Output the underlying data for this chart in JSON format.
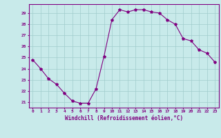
{
  "x": [
    0,
    1,
    2,
    3,
    4,
    5,
    6,
    7,
    8,
    9,
    10,
    11,
    12,
    13,
    14,
    15,
    16,
    17,
    18,
    19,
    20,
    21,
    22,
    23
  ],
  "y": [
    24.8,
    24.0,
    23.1,
    22.6,
    21.8,
    21.1,
    20.9,
    20.9,
    22.2,
    25.1,
    28.4,
    29.3,
    29.1,
    29.3,
    29.3,
    29.1,
    29.0,
    28.4,
    28.0,
    26.7,
    26.5,
    25.7,
    25.4,
    24.6
  ],
  "line_color": "#800080",
  "marker": "*",
  "marker_size": 3,
  "bg_color": "#c8eaea",
  "grid_color": "#a0cccc",
  "xlabel": "Windchill (Refroidissement éolien,°C)",
  "xlabel_color": "#800080",
  "tick_color": "#800080",
  "ylim": [
    20.5,
    29.8
  ],
  "xlim": [
    -0.5,
    23.5
  ],
  "yticks": [
    21,
    22,
    23,
    24,
    25,
    26,
    27,
    28,
    29
  ],
  "xticks": [
    0,
    1,
    2,
    3,
    4,
    5,
    6,
    7,
    8,
    9,
    10,
    11,
    12,
    13,
    14,
    15,
    16,
    17,
    18,
    19,
    20,
    21,
    22,
    23
  ],
  "border_color": "#800080",
  "figsize": [
    3.2,
    2.0
  ],
  "dpi": 100
}
